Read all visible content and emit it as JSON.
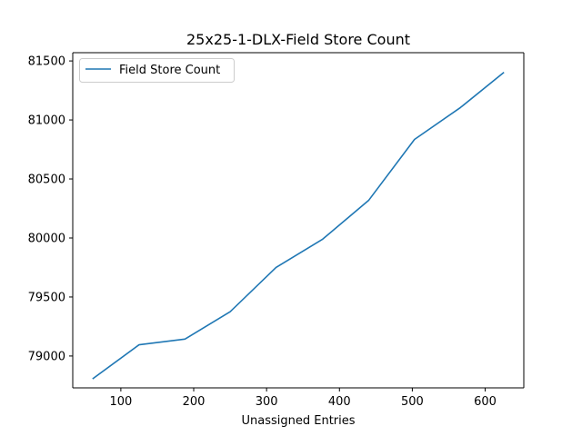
{
  "chart_data": {
    "type": "line",
    "title": "25x25-1-DLX-Field Store Count",
    "xlabel": "Unassigned Entries",
    "ylabel": "",
    "xlim": [
      34,
      653
    ],
    "ylim": [
      78730,
      81570
    ],
    "xticks": [
      100,
      200,
      300,
      400,
      500,
      600
    ],
    "yticks": [
      79000,
      79500,
      80000,
      80500,
      81000,
      81500
    ],
    "grid": false,
    "legend_position": "top-left",
    "series": [
      {
        "name": "Field Store Count",
        "color": "#1f77b4",
        "x": [
          62,
          125,
          188,
          250,
          313,
          377,
          440,
          503,
          566,
          625
        ],
        "y": [
          78810,
          79095,
          79143,
          79375,
          79750,
          79990,
          80318,
          80835,
          81105,
          81400
        ]
      }
    ]
  }
}
